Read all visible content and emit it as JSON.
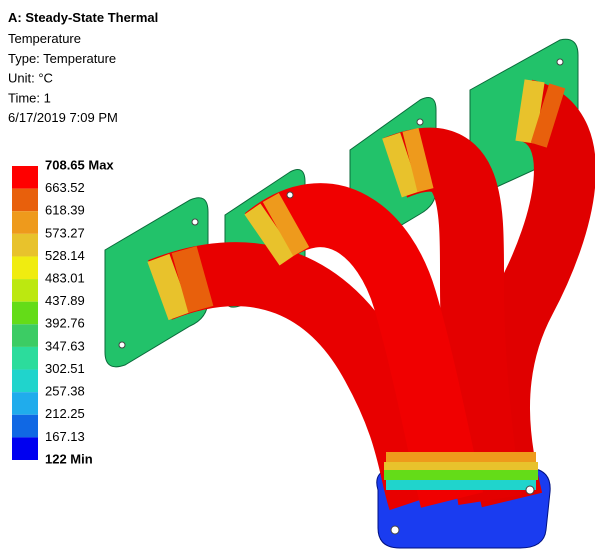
{
  "header": {
    "title": "A: Steady-State Thermal",
    "lines": [
      "Temperature",
      "Type: Temperature",
      "Unit: °C",
      "Time: 1",
      "6/17/2019 7:09 PM"
    ]
  },
  "legend": {
    "labels": [
      "708.65 Max",
      "663.52",
      "618.39",
      "573.27",
      "528.14",
      "483.01",
      "437.89",
      "392.76",
      "347.63",
      "302.51",
      "257.38",
      "212.25",
      "167.13",
      "122 Min"
    ],
    "colors": [
      "#ff0000",
      "#e8600c",
      "#ee9a1c",
      "#e8c22c",
      "#f0ec10",
      "#bce810",
      "#64dc18",
      "#3ccc64",
      "#2cdc9c",
      "#20d4cc",
      "#20acec",
      "#1068e4",
      "#0000f0"
    ]
  }
}
